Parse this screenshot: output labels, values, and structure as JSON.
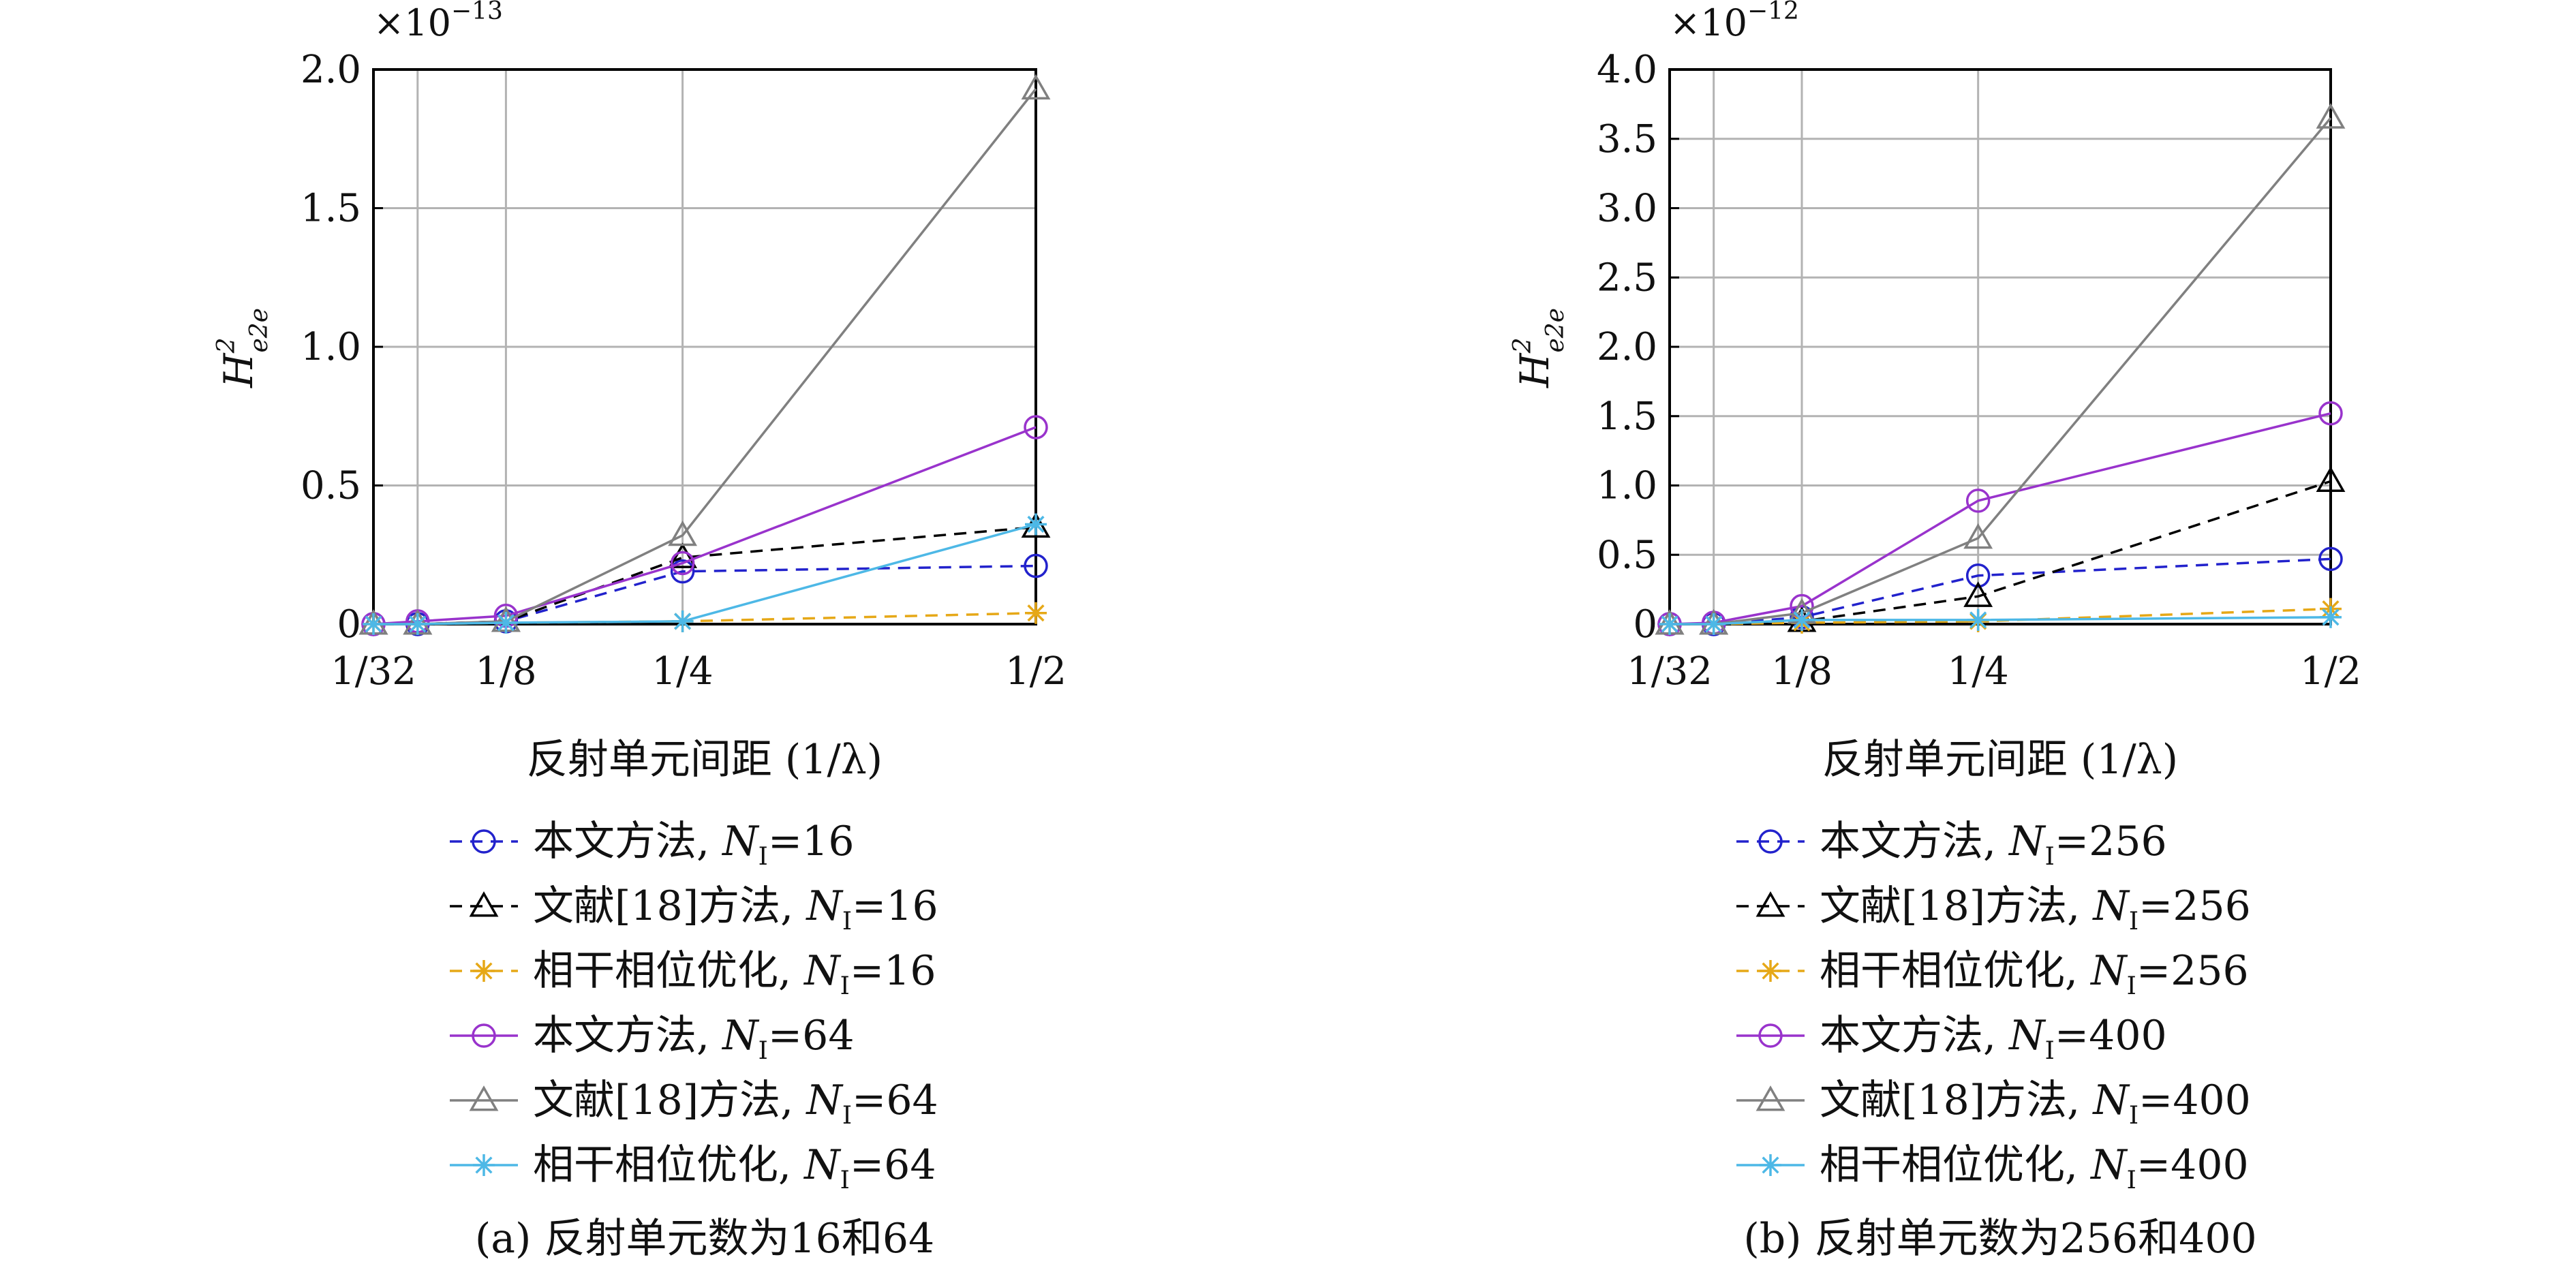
{
  "chart_data": [
    {
      "type": "line",
      "panel_caption": "(a) 反射单元数为16和64",
      "xlabel": "反射单元间距 (1/λ)",
      "ylabel": {
        "base": "H",
        "sup": "2",
        "sub": "e2e"
      },
      "y_multiplier": {
        "base": "×10",
        "exp": "−13"
      },
      "x": [
        0.03125,
        0.0625,
        0.125,
        0.25,
        0.5
      ],
      "x_ticks": [
        0.03125,
        0.125,
        0.25,
        0.5
      ],
      "x_tick_labels": [
        "1/32",
        "1/8",
        "1/4",
        "1/2"
      ],
      "x_grid": [
        0.03125,
        0.0625,
        0.125,
        0.25,
        0.5
      ],
      "xlim": [
        0.03125,
        0.5
      ],
      "ylim": [
        0,
        2.0
      ],
      "y_ticks": [
        0,
        0.5,
        1.0,
        1.5,
        2.0
      ],
      "y_tick_labels": [
        "0",
        "0.5",
        "1.0",
        "1.5",
        "2.0"
      ],
      "grid": true,
      "legend_position": "below",
      "series": [
        {
          "name": "本文方法, ",
          "n_label": "N",
          "n_sub": "I",
          "n_value": "=16",
          "color": "#2222cc",
          "dash": "dashed",
          "marker": "circle",
          "values": [
            0,
            0,
            0.01,
            0.19,
            0.21
          ]
        },
        {
          "name": "文献[18]方法, ",
          "n_label": "N",
          "n_sub": "I",
          "n_value": "=16",
          "color": "#000000",
          "dash": "dashed",
          "marker": "triangle",
          "values": [
            0,
            0,
            0.01,
            0.24,
            0.35
          ]
        },
        {
          "name": "相干相位优化, ",
          "n_label": "N",
          "n_sub": "I",
          "n_value": "=16",
          "color": "#e6a817",
          "dash": "dashed",
          "marker": "asterisk",
          "values": [
            0,
            0,
            0.005,
            0.01,
            0.04
          ]
        },
        {
          "name": "本文方法, ",
          "n_label": "N",
          "n_sub": "I",
          "n_value": "=64",
          "color": "#9933cc",
          "dash": "solid",
          "marker": "circle",
          "values": [
            0,
            0.01,
            0.03,
            0.22,
            0.71
          ]
        },
        {
          "name": "文献[18]方法, ",
          "n_label": "N",
          "n_sub": "I",
          "n_value": "=64",
          "color": "#808080",
          "dash": "solid",
          "marker": "triangle",
          "values": [
            0,
            0,
            0.01,
            0.32,
            1.93
          ]
        },
        {
          "name": "相干相位优化, ",
          "n_label": "N",
          "n_sub": "I",
          "n_value": "=64",
          "color": "#4db8e6",
          "dash": "solid",
          "marker": "asterisk",
          "values": [
            0,
            0,
            0.005,
            0.01,
            0.36
          ]
        }
      ]
    },
    {
      "type": "line",
      "panel_caption": "(b) 反射单元数为256和400",
      "xlabel": "反射单元间距 (1/λ)",
      "ylabel": {
        "base": "H",
        "sup": "2",
        "sub": "e2e"
      },
      "y_multiplier": {
        "base": "×10",
        "exp": "−12"
      },
      "x": [
        0.03125,
        0.0625,
        0.125,
        0.25,
        0.5
      ],
      "x_ticks": [
        0.03125,
        0.125,
        0.25,
        0.5
      ],
      "x_tick_labels": [
        "1/32",
        "1/8",
        "1/4",
        "1/2"
      ],
      "x_grid": [
        0.03125,
        0.0625,
        0.125,
        0.25,
        0.5
      ],
      "xlim": [
        0.03125,
        0.5
      ],
      "ylim": [
        0,
        4.0
      ],
      "y_ticks": [
        0,
        0.5,
        1.0,
        1.5,
        2.0,
        2.5,
        3.0,
        3.5,
        4.0
      ],
      "y_tick_labels": [
        "0",
        "0.5",
        "1.0",
        "1.5",
        "2.0",
        "2.5",
        "3.0",
        "3.5",
        "4.0"
      ],
      "grid": true,
      "legend_position": "below",
      "series": [
        {
          "name": "本文方法, ",
          "n_label": "N",
          "n_sub": "I",
          "n_value": "=256",
          "color": "#2222cc",
          "dash": "dashed",
          "marker": "circle",
          "values": [
            0,
            0,
            0.05,
            0.35,
            0.47
          ]
        },
        {
          "name": "文献[18]方法, ",
          "n_label": "N",
          "n_sub": "I",
          "n_value": "=256",
          "color": "#000000",
          "dash": "dashed",
          "marker": "triangle",
          "values": [
            0,
            0,
            0.02,
            0.2,
            1.03
          ]
        },
        {
          "name": "相干相位优化, ",
          "n_label": "N",
          "n_sub": "I",
          "n_value": "=256",
          "color": "#e6a817",
          "dash": "dashed",
          "marker": "asterisk",
          "values": [
            0,
            0,
            0.01,
            0.02,
            0.11
          ]
        },
        {
          "name": "本文方法, ",
          "n_label": "N",
          "n_sub": "I",
          "n_value": "=400",
          "color": "#9933cc",
          "dash": "solid",
          "marker": "circle",
          "values": [
            0,
            0.01,
            0.13,
            0.89,
            1.52
          ]
        },
        {
          "name": "文献[18]方法, ",
          "n_label": "N",
          "n_sub": "I",
          "n_value": "=400",
          "color": "#808080",
          "dash": "solid",
          "marker": "triangle",
          "values": [
            0,
            0,
            0.08,
            0.62,
            3.65
          ]
        },
        {
          "name": "相干相位优化, ",
          "n_label": "N",
          "n_sub": "I",
          "n_value": "=400",
          "color": "#4db8e6",
          "dash": "solid",
          "marker": "asterisk",
          "values": [
            0,
            0,
            0.03,
            0.03,
            0.05
          ]
        }
      ]
    }
  ]
}
